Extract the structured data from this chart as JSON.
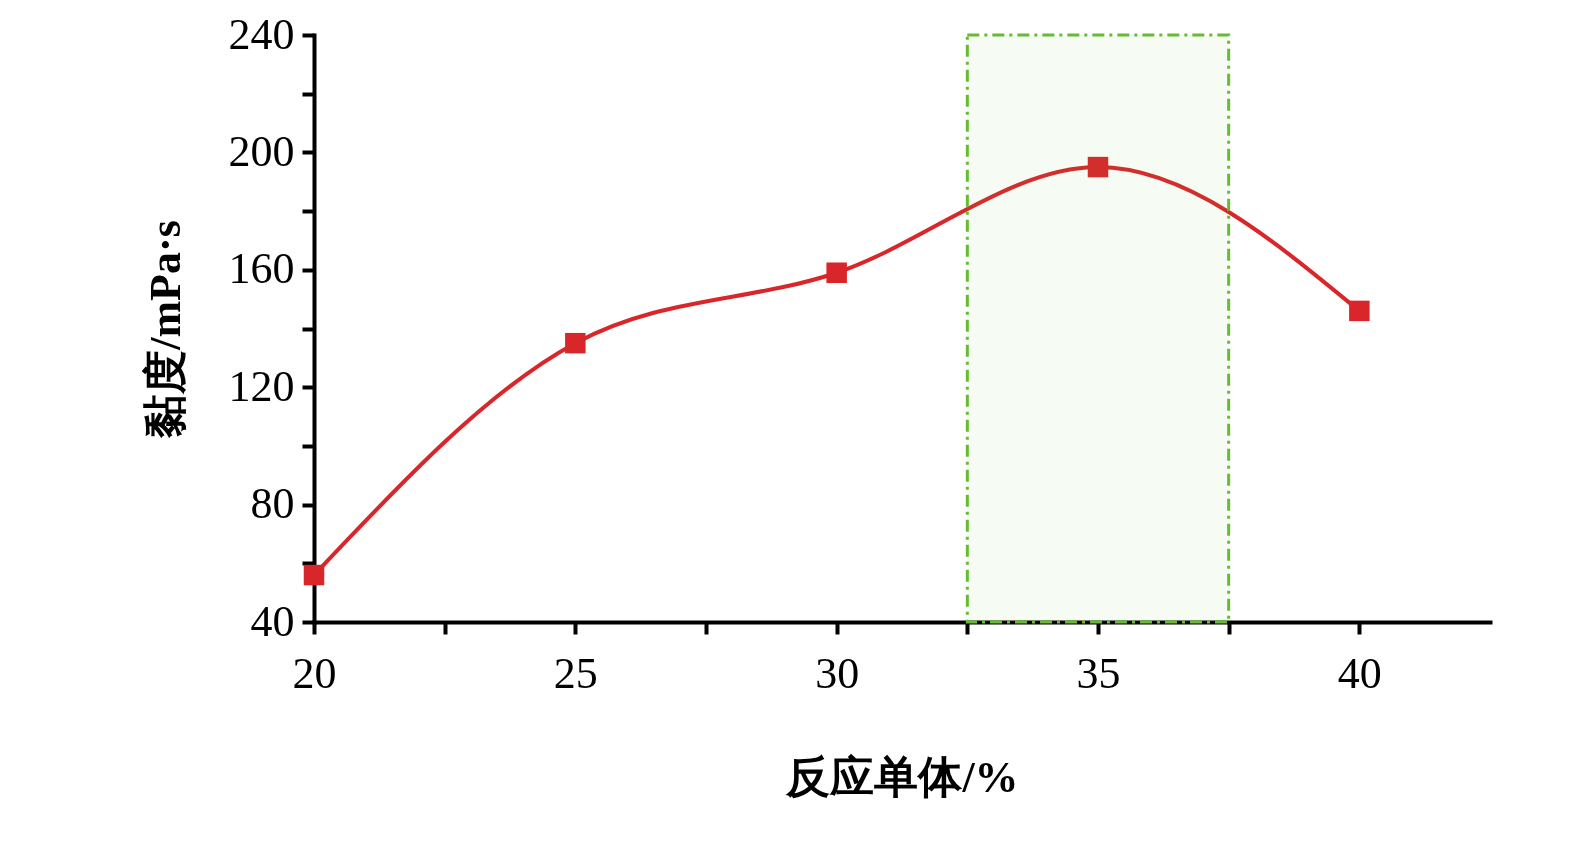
{
  "chart_data": {
    "type": "line",
    "xlabel": "反应单体/%",
    "ylabel": "黏度/mPa·s",
    "x": [
      20,
      25,
      30,
      35,
      40
    ],
    "series": [
      {
        "color": "#d9262b",
        "values": [
          56,
          135,
          159,
          195,
          146
        ]
      }
    ],
    "xlim": [
      20,
      42.5
    ],
    "xticks": [
      20,
      {
        "value": 22.5,
        "label": null
      },
      25,
      {
        "value": 27.5,
        "label": null
      },
      30,
      {
        "value": 32.5,
        "label": null
      },
      35,
      {
        "value": 37.5,
        "label": null
      },
      40
    ],
    "ylim": [
      40,
      240
    ],
    "yticks": [
      40,
      {
        "value": 60,
        "label": null
      },
      80,
      {
        "value": 100,
        "label": null
      },
      120,
      {
        "value": 140,
        "label": null
      },
      160,
      {
        "value": 180,
        "label": null
      },
      200,
      {
        "value": 220,
        "label": null
      },
      240
    ],
    "bands": [
      {
        "axis": "x",
        "from": 32.5,
        "to": 37.5,
        "color": "#66bb33"
      }
    ],
    "marker": "square",
    "grid": false
  }
}
